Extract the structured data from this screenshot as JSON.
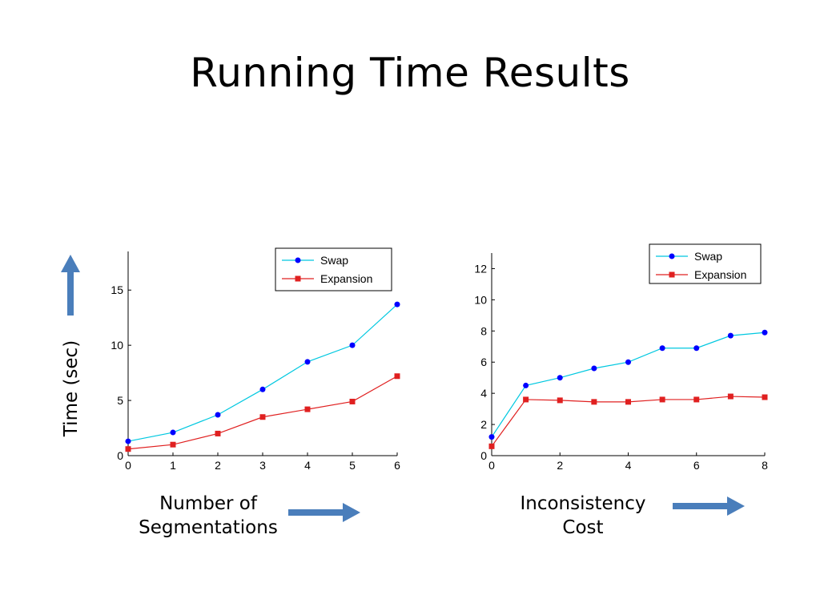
{
  "slide": {
    "title": "Running Time Results",
    "ylabel": "Time (sec)",
    "caption_left": [
      "Number of",
      "Segmentations"
    ],
    "caption_right": [
      "Inconsistency",
      "Cost"
    ]
  },
  "colors": {
    "arrow": "#4a7ebb",
    "swap": "#00c8e0",
    "swap_marker": "#0000ff",
    "expansion": "#e02020"
  },
  "chart_data": [
    {
      "type": "line",
      "x": [
        0,
        1,
        2,
        3,
        4,
        5,
        6
      ],
      "xlim": [
        0,
        6
      ],
      "ylim": [
        0,
        18.5
      ],
      "xticks": [
        0,
        1,
        2,
        3,
        4,
        5,
        6
      ],
      "yticks": [
        0,
        5,
        10,
        15
      ],
      "legend": "top-right",
      "series": [
        {
          "name": "Swap",
          "values": [
            1.3,
            2.1,
            3.7,
            6.0,
            8.5,
            10.0,
            13.7
          ]
        },
        {
          "name": "Expansion",
          "values": [
            0.6,
            1.0,
            2.0,
            3.5,
            4.2,
            4.9,
            7.2
          ]
        }
      ]
    },
    {
      "type": "line",
      "x": [
        0,
        1,
        2,
        3,
        4,
        5,
        6,
        7,
        8
      ],
      "xlim": [
        0,
        8
      ],
      "ylim": [
        0,
        13
      ],
      "xticks": [
        0,
        2,
        4,
        6,
        8
      ],
      "yticks": [
        0,
        2,
        4,
        6,
        8,
        10,
        12
      ],
      "legend": "top-right",
      "series": [
        {
          "name": "Swap",
          "values": [
            1.2,
            4.5,
            5.0,
            5.6,
            6.0,
            6.9,
            6.9,
            7.7,
            7.9
          ]
        },
        {
          "name": "Expansion",
          "values": [
            0.6,
            3.6,
            3.55,
            3.45,
            3.45,
            3.6,
            3.6,
            3.8,
            3.75
          ]
        }
      ]
    }
  ]
}
